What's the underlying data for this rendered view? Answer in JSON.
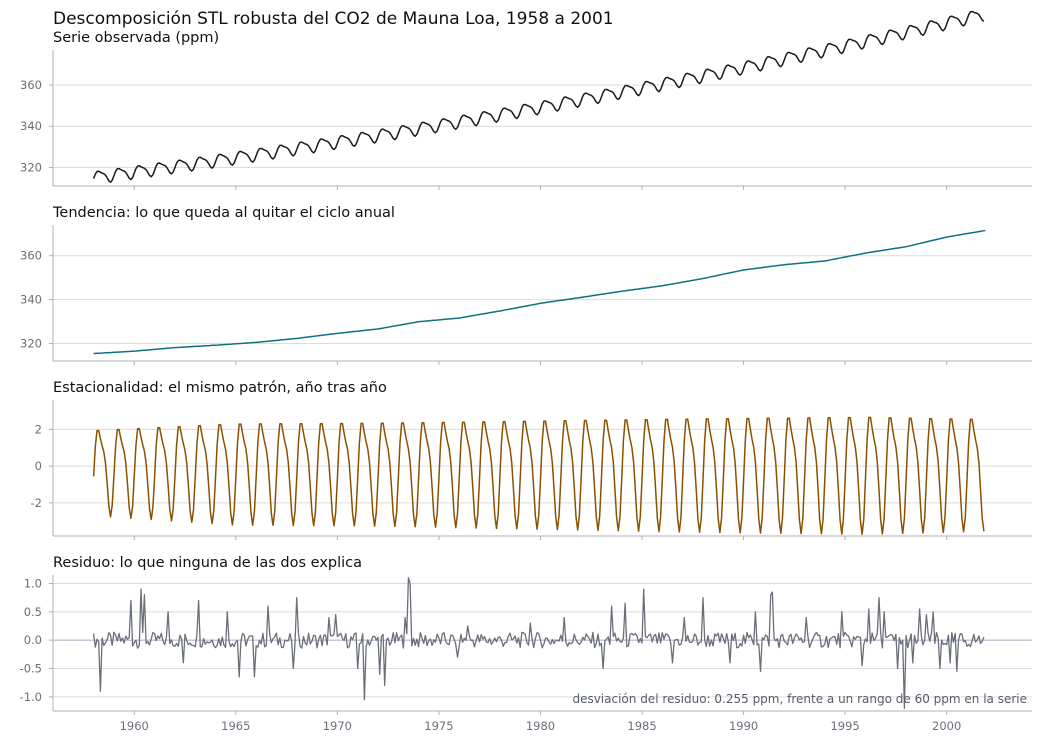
{
  "title": "Descomposición STL robusta del CO2 de Mauna Loa, 1958 a 2001",
  "colors": {
    "observed": "#1a1a1a",
    "trend": "#0e7182",
    "seasonal": "#8a5200",
    "resid": "#6b6f7a",
    "grid": "#dcdcdc",
    "axis": "#b0b0b0",
    "ticks": "#6b6f7a"
  },
  "chart_data": [
    {
      "id": "observed",
      "type": "line",
      "title": "Serie observada (ppm)",
      "yticks": [
        320,
        340,
        360
      ],
      "ylim": [
        311,
        377
      ],
      "x_range": [
        1958.0,
        2001.9
      ],
      "model": {
        "base": 315.3,
        "slope": 1.29,
        "quad": 0.0118,
        "amp": 2.8
      },
      "grid": true
    },
    {
      "id": "trend",
      "type": "line",
      "title": "Tendencia: lo que queda al quitar el ciclo anual",
      "yticks": [
        320,
        340,
        360
      ],
      "ylim": [
        312,
        374
      ],
      "x": [
        1958,
        1960,
        1962,
        1964,
        1966,
        1968,
        1970,
        1972,
        1974,
        1976,
        1978,
        1980,
        1982,
        1984,
        1986,
        1988,
        1990,
        1992,
        1994,
        1996,
        1998,
        2000,
        2001.9
      ],
      "values": [
        315.4,
        316.5,
        318.1,
        319.2,
        320.5,
        322.3,
        324.6,
        326.6,
        329.9,
        331.6,
        334.8,
        338.3,
        341.0,
        343.8,
        346.3,
        349.6,
        353.5,
        355.9,
        357.6,
        361.2,
        364.1,
        368.5,
        371.5
      ],
      "grid": true
    },
    {
      "id": "seasonal",
      "type": "line",
      "title": "Estacionalidad: el mismo patrón, año tras año",
      "yticks": [
        -2,
        0,
        2
      ],
      "ylim": [
        -3.8,
        3.6
      ],
      "x_range": [
        1958.0,
        2001.9
      ],
      "amp_points": {
        "x": [
          1958,
          1965,
          1972,
          1980,
          1988,
          1996,
          2001.9
        ],
        "amp": [
          2.4,
          2.85,
          2.9,
          3.05,
          3.2,
          3.3,
          3.15
        ]
      },
      "grid": true
    },
    {
      "id": "resid",
      "type": "line",
      "title": "Residuo: lo que ninguna de las dos explica",
      "yticks": [
        -1.0,
        -0.5,
        0.0,
        0.5,
        1.0
      ],
      "ylim": [
        -1.25,
        1.15
      ],
      "x_range": [
        1958.0,
        2001.9
      ],
      "annotation": "desviación del residuo: 0.255 ppm, frente a un rango de 60 ppm en la serie",
      "spikes": [
        [
          1958.3,
          -0.9
        ],
        [
          1959.8,
          0.7
        ],
        [
          1960.3,
          0.9
        ],
        [
          1960.5,
          0.8
        ],
        [
          1961.7,
          0.5
        ],
        [
          1962.4,
          -0.4
        ],
        [
          1963.2,
          0.7
        ],
        [
          1964.6,
          0.5
        ],
        [
          1965.2,
          -0.65
        ],
        [
          1965.9,
          -0.65
        ],
        [
          1966.6,
          0.6
        ],
        [
          1967.8,
          -0.5
        ],
        [
          1968.0,
          0.75
        ],
        [
          1969.6,
          0.4
        ],
        [
          1969.9,
          0.45
        ],
        [
          1971.0,
          -0.5
        ],
        [
          1971.3,
          -1.05
        ],
        [
          1972.1,
          -0.6
        ],
        [
          1972.3,
          -0.8
        ],
        [
          1973.3,
          0.4
        ],
        [
          1973.5,
          1.1
        ],
        [
          1973.6,
          1.0
        ],
        [
          1975.9,
          -0.3
        ],
        [
          1976.4,
          0.25
        ],
        [
          1979.5,
          0.3
        ],
        [
          1981.2,
          0.4
        ],
        [
          1983.1,
          -0.5
        ],
        [
          1983.5,
          0.6
        ],
        [
          1984.2,
          0.65
        ],
        [
          1985.1,
          0.9
        ],
        [
          1986.5,
          -0.4
        ],
        [
          1987.1,
          0.4
        ],
        [
          1988.0,
          0.75
        ],
        [
          1989.3,
          -0.4
        ],
        [
          1990.6,
          0.5
        ],
        [
          1990.8,
          -0.55
        ],
        [
          1991.3,
          0.8
        ],
        [
          1991.4,
          0.85
        ],
        [
          1993.1,
          0.4
        ],
        [
          1994.8,
          0.5
        ],
        [
          1995.8,
          -0.45
        ],
        [
          1996.2,
          0.55
        ],
        [
          1996.7,
          0.75
        ],
        [
          1996.9,
          0.5
        ],
        [
          1997.6,
          -0.5
        ],
        [
          1997.9,
          -1.2
        ],
        [
          1998.3,
          -0.4
        ],
        [
          1998.7,
          0.55
        ],
        [
          1999.0,
          0.45
        ],
        [
          1999.3,
          0.5
        ],
        [
          1999.7,
          -0.5
        ],
        [
          2000.2,
          -0.4
        ],
        [
          2000.5,
          -0.55
        ]
      ],
      "grid": true
    }
  ],
  "x_axis": {
    "ticks": [
      1960,
      1965,
      1970,
      1975,
      1980,
      1985,
      1990,
      1995,
      2000
    ],
    "xlim": [
      1956.0,
      2004.2
    ]
  }
}
